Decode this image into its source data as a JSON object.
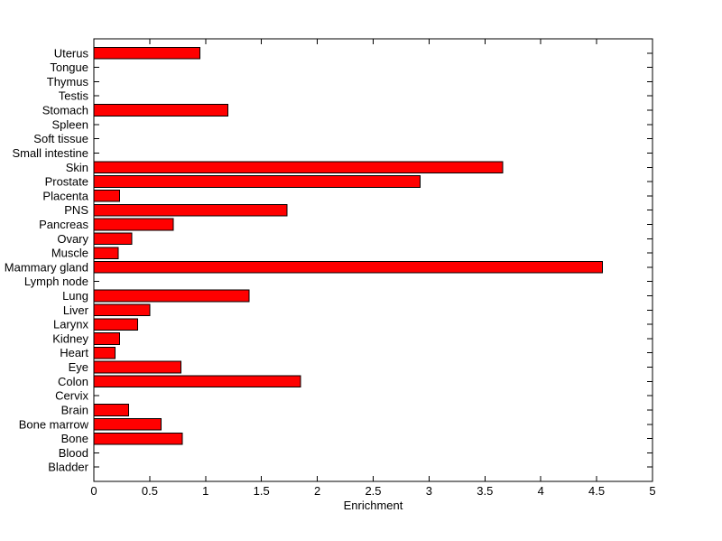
{
  "figure": {
    "background": "#ffffff",
    "plot_background": "#ffffff"
  },
  "chart_data": {
    "type": "bar",
    "orientation": "horizontal",
    "title": "",
    "xlabel": "Enrichment",
    "ylabel": "",
    "xlim": [
      0,
      5
    ],
    "xticks": [
      0,
      0.5,
      1,
      1.5,
      2,
      2.5,
      3,
      3.5,
      4,
      4.5,
      5
    ],
    "xtick_labels": [
      "0",
      "0.5",
      "1",
      "1.5",
      "2",
      "2.5",
      "3",
      "3.5",
      "4",
      "4.5",
      "5"
    ],
    "grid": false,
    "legend": "none",
    "box": true,
    "tick_direction": "in",
    "bar_color": "#ff0000",
    "bar_border_color": "#000000",
    "axis_color": "#000000",
    "text_color": "#000000",
    "categories_top_to_bottom": [
      "Uterus",
      "Tongue",
      "Thymus",
      "Testis",
      "Stomach",
      "Spleen",
      "Soft tissue",
      "Small intestine",
      "Skin",
      "Prostate",
      "Placenta",
      "PNS",
      "Pancreas",
      "Ovary",
      "Muscle",
      "Mammary gland",
      "Lymph node",
      "Lung",
      "Liver",
      "Larynx",
      "Kidney",
      "Heart",
      "Eye",
      "Colon",
      "Cervix",
      "Brain",
      "Bone marrow",
      "Bone",
      "Blood",
      "Bladder"
    ],
    "values": [
      0.95,
      0,
      0,
      0,
      1.2,
      0,
      0,
      0,
      3.66,
      2.92,
      0.23,
      1.73,
      0.71,
      0.34,
      0.22,
      4.55,
      0,
      1.39,
      0.5,
      0.39,
      0.23,
      0.19,
      0.78,
      1.85,
      0,
      0.31,
      0.6,
      0.79,
      0,
      0
    ]
  }
}
